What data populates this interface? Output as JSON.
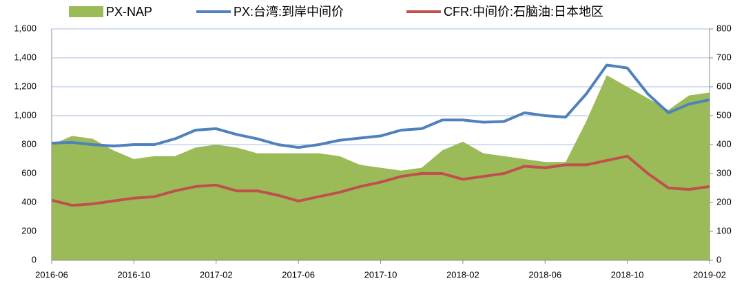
{
  "chart_data": {
    "type": "line",
    "categories": [
      "2016-06",
      null,
      null,
      null,
      "2016-10",
      null,
      null,
      null,
      "2017-02",
      null,
      null,
      null,
      "2017-06",
      null,
      null,
      null,
      "2017-10",
      null,
      null,
      null,
      "2018-02",
      null,
      null,
      null,
      "2018-06",
      null,
      null,
      null,
      "2018-10",
      null,
      null,
      null,
      "2019-02"
    ],
    "series": [
      {
        "name": "PX-NAP",
        "color": "#9bbb59",
        "axis": "y2",
        "values": [
          400,
          430,
          420,
          380,
          350,
          360,
          360,
          390,
          400,
          390,
          370,
          370,
          370,
          370,
          360,
          330,
          320,
          310,
          320,
          380,
          410,
          370,
          360,
          350,
          340,
          340,
          480,
          640,
          600,
          560,
          520,
          570,
          580
        ]
      },
      {
        "name": "PX:台湾:到岸中间价",
        "color": "#4f81bd",
        "values": [
          810,
          815,
          800,
          790,
          800,
          800,
          840,
          900,
          910,
          870,
          840,
          800,
          780,
          800,
          830,
          845,
          860,
          900,
          910,
          970,
          970,
          955,
          960,
          1020,
          1000,
          990,
          1150,
          1350,
          1330,
          1150,
          1020,
          1080,
          1110
        ]
      },
      {
        "name": "CFR:中间价:石脑油:日本地区",
        "color": "#c0504d",
        "values": [
          415,
          380,
          390,
          410,
          430,
          440,
          480,
          510,
          520,
          480,
          480,
          450,
          410,
          440,
          470,
          510,
          540,
          580,
          600,
          600,
          560,
          580,
          600,
          650,
          640,
          660,
          660,
          690,
          720,
          600,
          500,
          490,
          510
        ]
      }
    ],
    "ylim": [
      0,
      1600
    ],
    "yticks": [
      0,
      200,
      400,
      600,
      800,
      {
        "value": 1000,
        "label": "1,000"
      },
      {
        "value": 1200,
        "label": "1,200"
      },
      {
        "value": 1400,
        "label": "1,400"
      },
      {
        "value": 1600,
        "label": "1,600"
      }
    ],
    "y2lim": [
      0,
      800
    ],
    "y2ticks": [
      0,
      100,
      200,
      300,
      400,
      500,
      600,
      700,
      800
    ],
    "grid": true
  }
}
